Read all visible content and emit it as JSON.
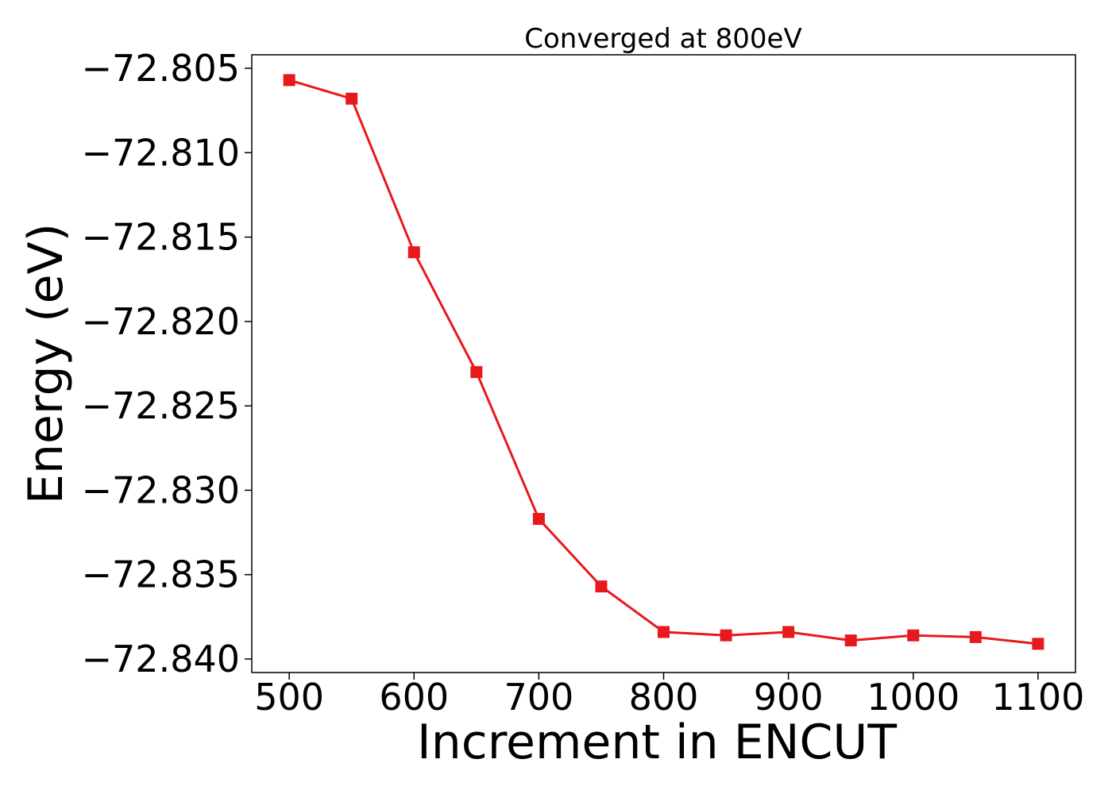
{
  "chart_data": {
    "type": "line",
    "title": "Converged at 800eV",
    "xlabel": "Increment in ENCUT",
    "ylabel": "Energy (eV)",
    "x": [
      500,
      550,
      600,
      650,
      700,
      750,
      800,
      850,
      900,
      950,
      1000,
      1050,
      1100
    ],
    "series": [
      {
        "values": [
          -72.8057,
          -72.8068,
          -72.8159,
          -72.823,
          -72.8317,
          -72.8357,
          -72.8384,
          -72.8386,
          -72.8384,
          -72.8389,
          -72.8386,
          -72.8387,
          -72.8391
        ],
        "color": "#e8191c",
        "marker": "square"
      }
    ],
    "xlim": [
      470,
      1130
    ],
    "ylim": [
      -72.8408,
      -72.8042
    ],
    "xticks": [
      500,
      600,
      700,
      800,
      900,
      1000,
      1100
    ],
    "xtick_labels": [
      "500",
      "600",
      "700",
      "800",
      "900",
      "1000",
      "1100"
    ],
    "yticks": [
      -72.805,
      -72.81,
      -72.815,
      -72.82,
      -72.825,
      -72.83,
      -72.835,
      -72.84
    ],
    "ytick_labels": [
      "−72.805",
      "−72.810",
      "−72.815",
      "−72.820",
      "−72.825",
      "−72.830",
      "−72.835",
      "−72.840"
    ],
    "grid": false,
    "legend": "none"
  }
}
